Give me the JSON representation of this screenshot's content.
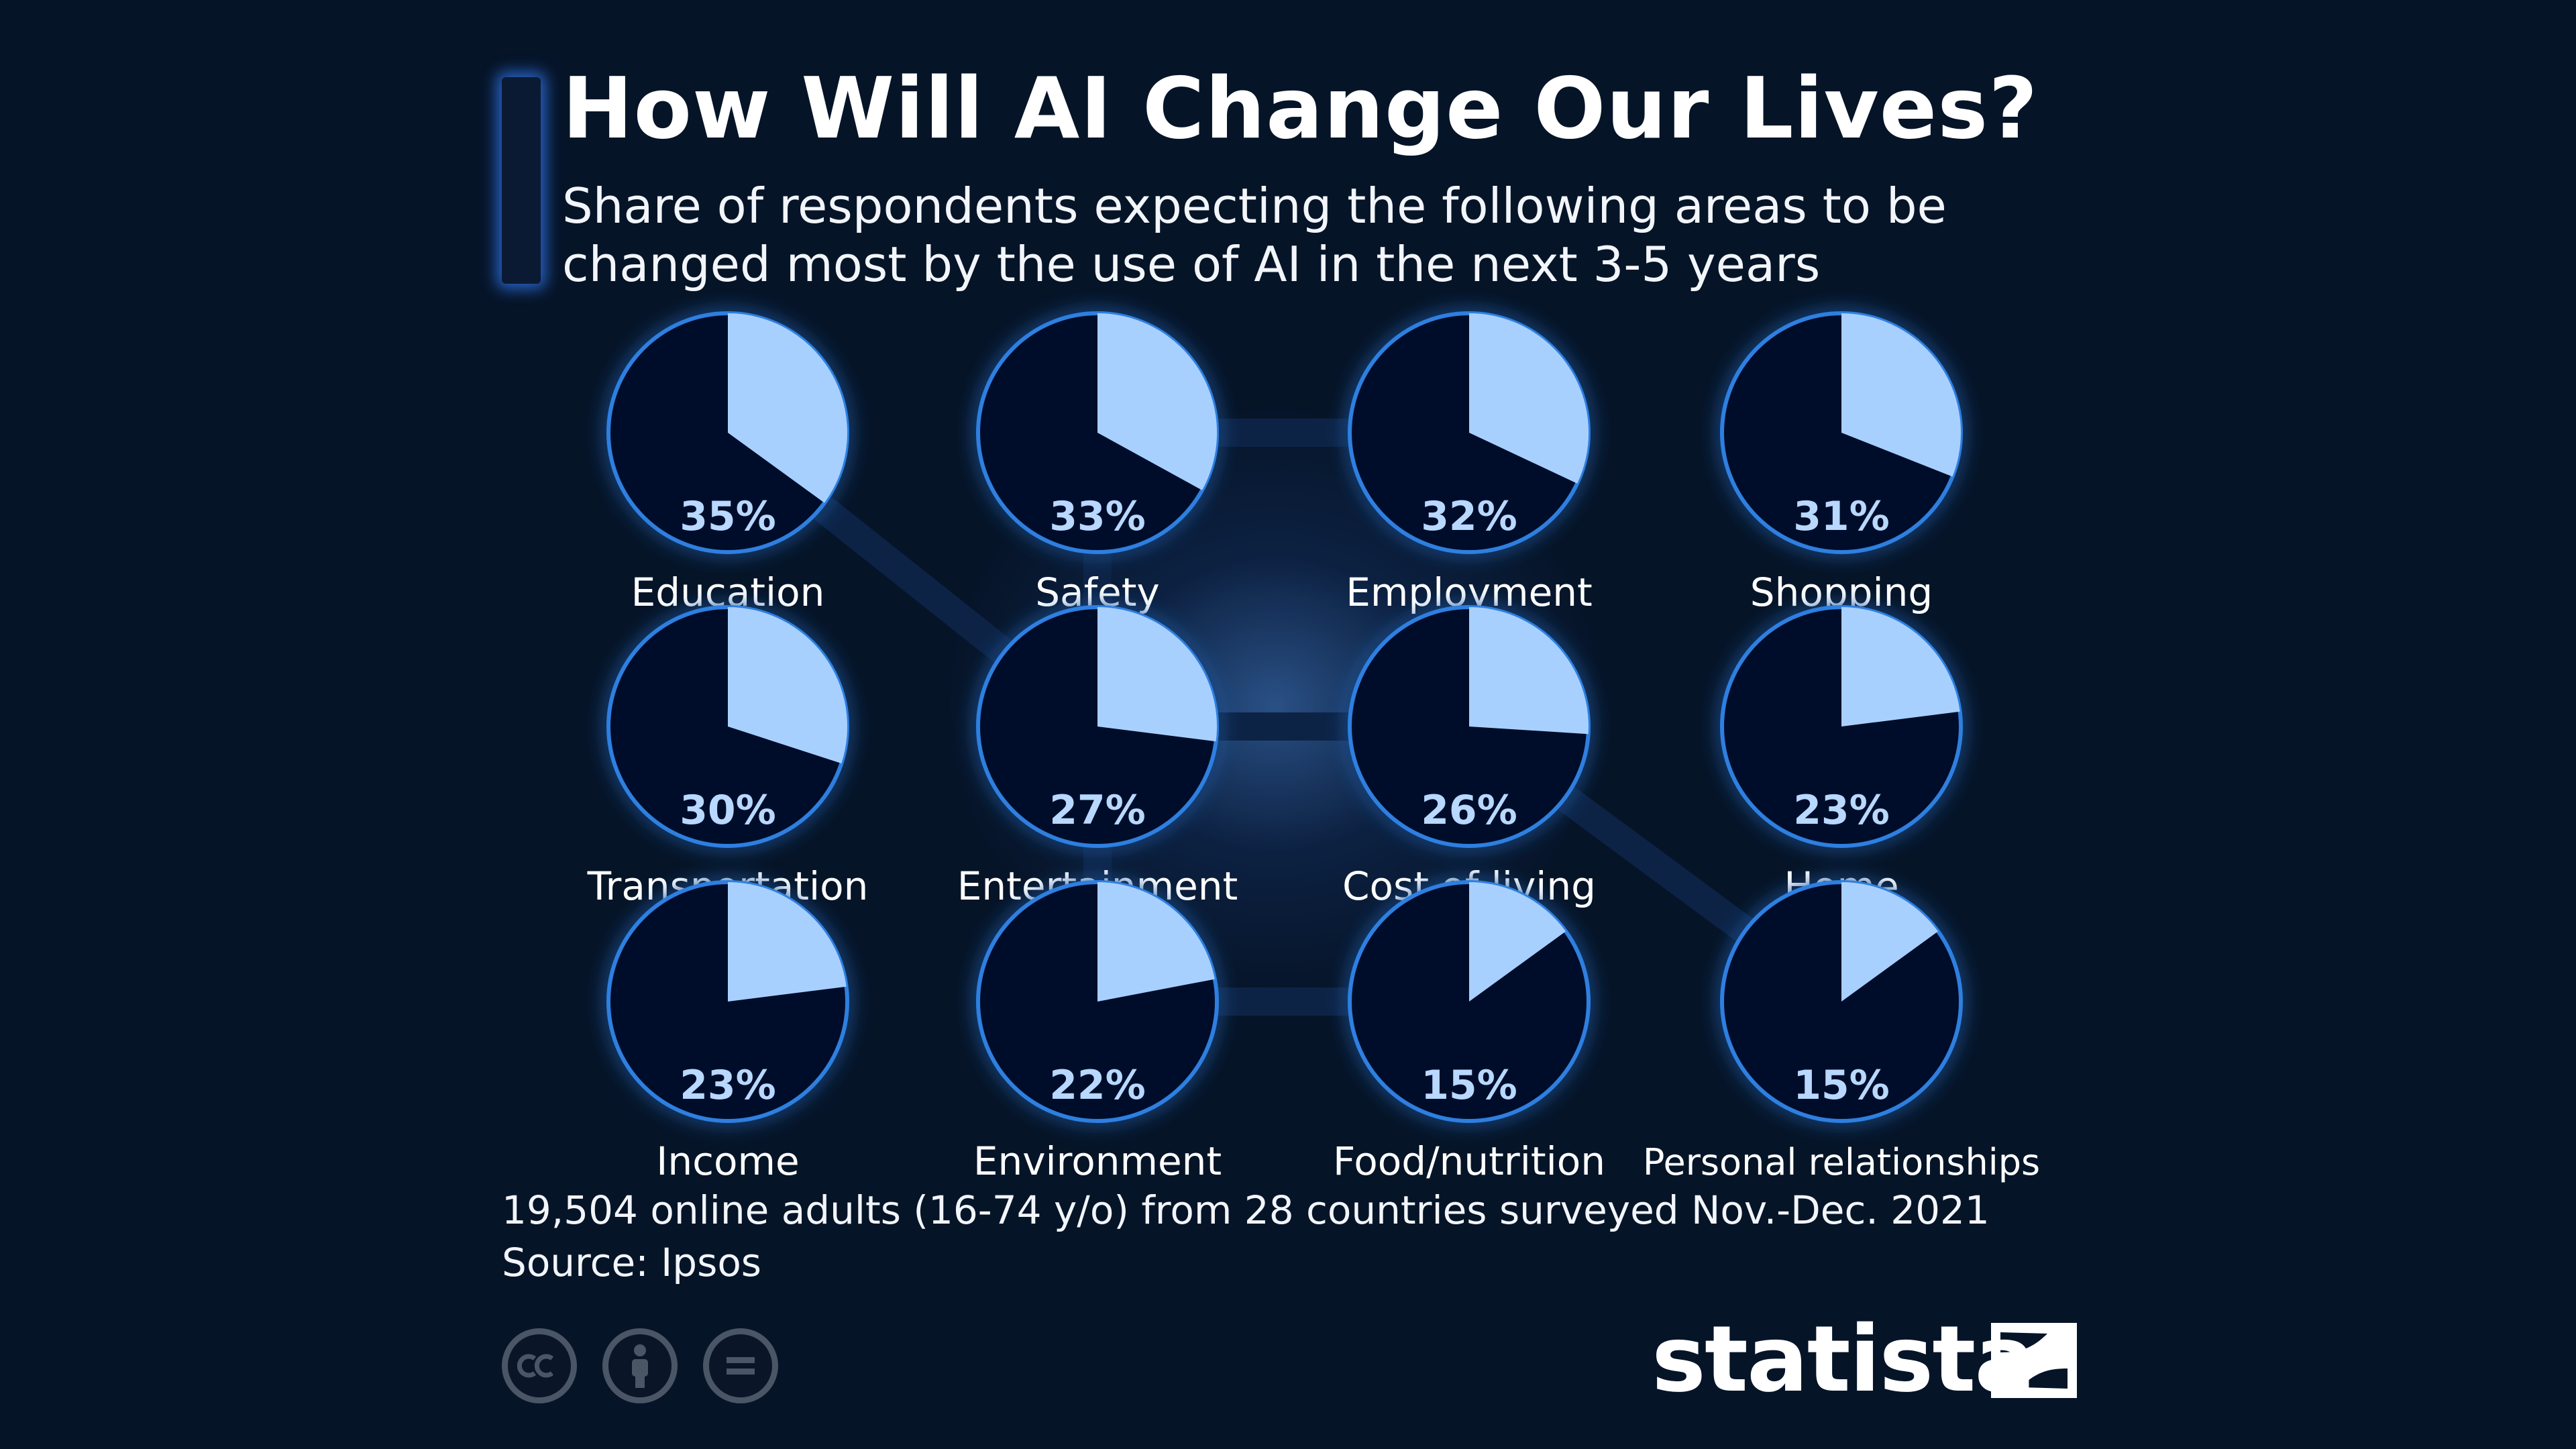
{
  "title": "How Will AI Change Our Lives?",
  "subtitle_lines": [
    "Share of respondents expecting the following areas to be",
    "changed most by the use of AI in the next 3-5 years"
  ],
  "chart_data": {
    "type": "pie",
    "title": "How Will AI Change Our Lives?",
    "unit": "%",
    "categories": [
      "Education",
      "Safety",
      "Employment",
      "Shopping",
      "Transportation",
      "Entertainment",
      "Cost of living",
      "Home",
      "Income",
      "Environment",
      "Food/nutrition",
      "Personal relationships"
    ],
    "values": [
      35,
      33,
      32,
      31,
      30,
      27,
      26,
      23,
      23,
      22,
      15,
      15
    ],
    "labels": [
      "35%",
      "33%",
      "32%",
      "31%",
      "30%",
      "27%",
      "26%",
      "23%",
      "23%",
      "22%",
      "15%",
      "15%"
    ]
  },
  "note": "19,504 online adults (16-74 y/o) from 28 countries surveyed Nov.-Dec. 2021",
  "source": "Source: Ipsos",
  "license_icons": [
    "cc-icon",
    "attribution-icon",
    "no-derivatives-icon"
  ],
  "brand": "statista",
  "colors": {
    "background": "#061428",
    "slice": "#a8d0ff",
    "pie_base": "#05112a",
    "glow": "#2f7fe0",
    "percent_text": "#b8d8ff"
  }
}
